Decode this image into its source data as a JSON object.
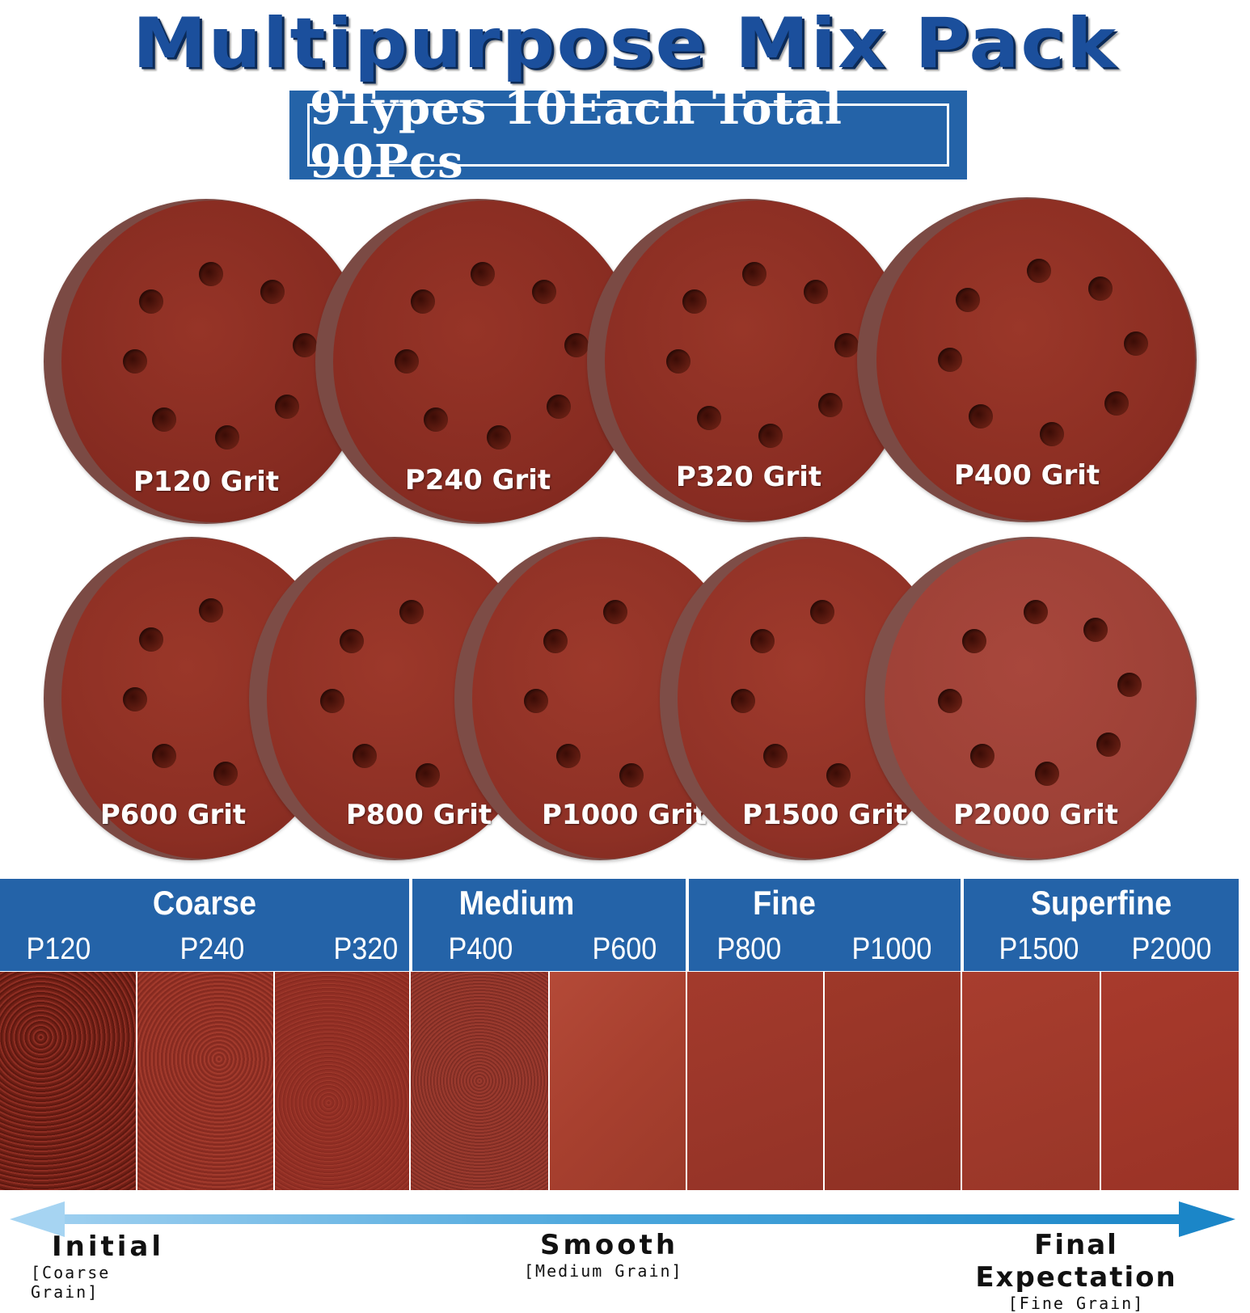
{
  "title": "Multipurpose Mix Pack",
  "subtitle": "9Types 10Each Total 90Pcs",
  "colors": {
    "title_blue": "#1b4f9c",
    "band_blue": "#2463a8",
    "disc_red": "#8f2b22"
  },
  "discs": [
    {
      "label": "P120 Grit"
    },
    {
      "label": "P240 Grit"
    },
    {
      "label": "P320 Grit"
    },
    {
      "label": "P400 Grit"
    },
    {
      "label": "P600 Grit"
    },
    {
      "label": "P800 Grit"
    },
    {
      "label": "P1000 Grit"
    },
    {
      "label": "P1500 Grit"
    },
    {
      "label": "P2000 Grit"
    }
  ],
  "categories": [
    {
      "name": "Coarse",
      "grits": [
        "P120",
        "P240",
        "P320"
      ]
    },
    {
      "name": "Medium",
      "grits": [
        "P400",
        "P600"
      ]
    },
    {
      "name": "Fine",
      "grits": [
        "P800",
        "P1000"
      ]
    },
    {
      "name": "Superfine",
      "grits": [
        "P1500",
        "P2000"
      ]
    }
  ],
  "progression": {
    "start": {
      "name": "Initial",
      "sub": "[Coarse Grain]"
    },
    "middle": {
      "name": "Smooth",
      "sub": "[Medium Grain]"
    },
    "end": {
      "name": "Final Expectation",
      "sub": "[Fine Grain]"
    }
  }
}
